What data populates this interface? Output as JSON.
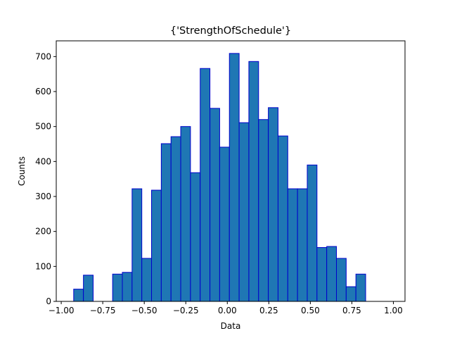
{
  "chart_data": {
    "type": "bar",
    "title": "{'StrengthOfSchedule'}",
    "xlabel": "Data",
    "ylabel": "Counts",
    "xlim": [
      -1.03,
      1.07
    ],
    "ylim": [
      0,
      745
    ],
    "x_ticks": [
      {
        "value": -1.0,
        "label": "−1.00"
      },
      {
        "value": -0.75,
        "label": "−0.75"
      },
      {
        "value": -0.5,
        "label": "−0.50"
      },
      {
        "value": -0.25,
        "label": "−0.25"
      },
      {
        "value": 0.0,
        "label": "0.00"
      },
      {
        "value": 0.25,
        "label": "0.25"
      },
      {
        "value": 0.5,
        "label": "0.50"
      },
      {
        "value": 0.75,
        "label": "0.75"
      },
      {
        "value": 1.0,
        "label": "1.00"
      }
    ],
    "y_ticks": [
      {
        "value": 0,
        "label": "0"
      },
      {
        "value": 100,
        "label": "100"
      },
      {
        "value": 200,
        "label": "200"
      },
      {
        "value": 300,
        "label": "300"
      },
      {
        "value": 400,
        "label": "400"
      },
      {
        "value": 500,
        "label": "500"
      },
      {
        "value": 600,
        "label": "600"
      },
      {
        "value": 700,
        "label": "700"
      }
    ],
    "bin_edges": [
      -0.925,
      -0.8664,
      -0.8078,
      -0.7492,
      -0.6906,
      -0.632,
      -0.5734,
      -0.5148,
      -0.4562,
      -0.3976,
      -0.339,
      -0.2804,
      -0.2218,
      -0.1632,
      -0.1046,
      -0.046,
      0.0126,
      0.0712,
      0.1298,
      0.1884,
      0.247,
      0.3056,
      0.3642,
      0.4228,
      0.4814,
      0.54,
      0.5986,
      0.6572,
      0.7158,
      0.7744,
      0.833,
      0.8916,
      0.9502,
      1.0088
    ],
    "values": [
      35,
      75,
      0,
      0,
      78,
      83,
      322,
      123,
      318,
      451,
      471,
      500,
      368,
      666,
      552,
      441,
      709,
      511,
      686,
      520,
      554,
      473,
      322,
      322,
      390,
      154,
      157,
      123,
      42,
      78,
      0,
      0,
      0
    ],
    "bar_color": "#1f77b4",
    "edge_color": "#0000cc",
    "grid": false,
    "legend": "none"
  }
}
